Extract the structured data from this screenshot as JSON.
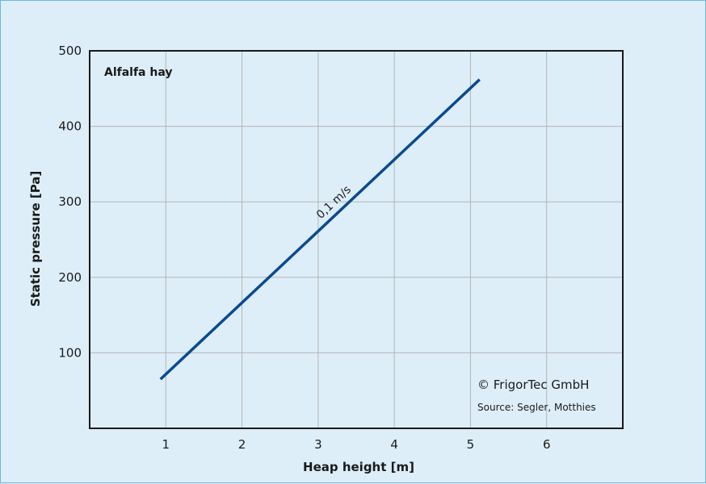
{
  "chart_data": {
    "type": "line",
    "title": "",
    "inset_title": "Alfalfa hay",
    "xlabel": "Heap height [m]",
    "ylabel": "Static pressure [Pa]",
    "xlim": [
      0,
      7
    ],
    "ylim": [
      0,
      500
    ],
    "x_ticks": [
      1,
      2,
      3,
      4,
      5,
      6
    ],
    "y_ticks": [
      100,
      200,
      300,
      400,
      500
    ],
    "grid": true,
    "series": [
      {
        "name": "0,1 m/s",
        "color": "#0b4a8f",
        "x": [
          0.93,
          5.12
        ],
        "y": [
          65,
          462
        ]
      }
    ],
    "annotations": {
      "copyright": "© FrigorTec GmbH",
      "source": "Source: Segler, Motthies"
    }
  }
}
